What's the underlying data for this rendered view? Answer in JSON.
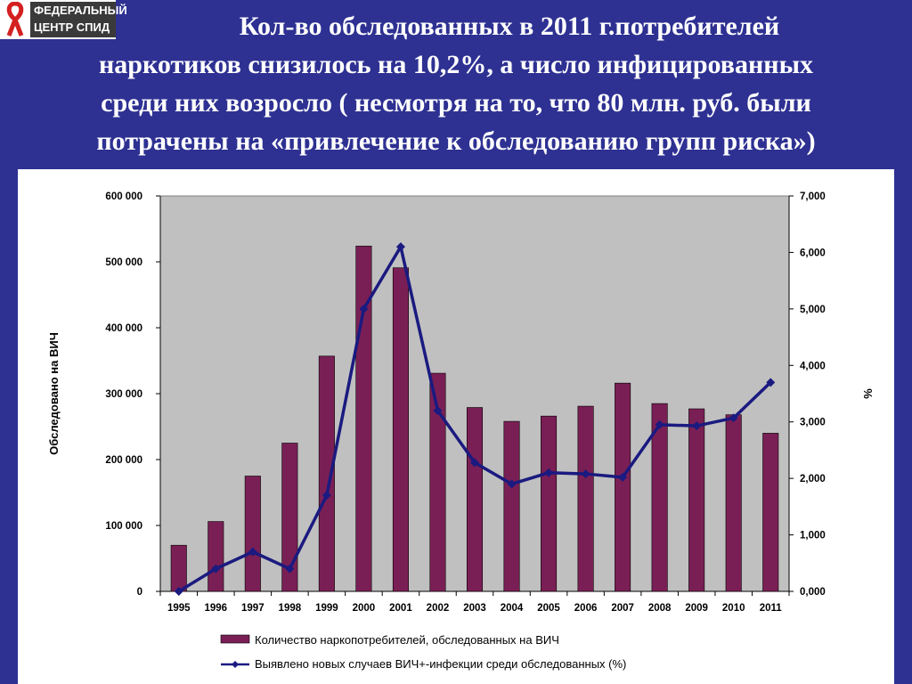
{
  "logo": {
    "line1": "ФЕДЕРАЛЬНЫЙ",
    "line2": "ЦЕНТР СПИД"
  },
  "title": {
    "line1": "Кол-во обследованных в 2011 г.потребителей",
    "line2": "наркотиков снизилось на 10,2%, а число инфицированных",
    "line3": "среди них возросло ( несмотря на то, что 80 млн. руб. были",
    "line4": "потрачены на «привлечение к обследованию групп риска»)"
  },
  "colors": {
    "background": "#2e3192",
    "bars": "#7a1f55",
    "line": "#1a1a80",
    "plot_area": "#c0c0c0"
  },
  "chart_data": {
    "type": "bar+line",
    "categories": [
      "1995",
      "1996",
      "1997",
      "1998",
      "1999",
      "2000",
      "2001",
      "2002",
      "2003",
      "2004",
      "2005",
      "2006",
      "2007",
      "2008",
      "2009",
      "2010",
      "2011"
    ],
    "ylabel": "Обследовано на ВИЧ",
    "y2label": "%",
    "ylim": [
      0,
      600000
    ],
    "y2lim": [
      0,
      7
    ],
    "y_ticks": [
      "0",
      "100 000",
      "200 000",
      "300 000",
      "400 000",
      "500 000",
      "600 000"
    ],
    "y2_ticks": [
      "0,000",
      "1,000",
      "2,000",
      "3,000",
      "4,000",
      "5,000",
      "6,000",
      "7,000"
    ],
    "grid": false,
    "legend_position": "bottom",
    "series": [
      {
        "name": "Количество наркопотребителей, обследованных на ВИЧ",
        "type": "bar",
        "axis": "left",
        "values": [
          70000,
          106000,
          175000,
          225000,
          357000,
          524000,
          491000,
          331000,
          279000,
          258000,
          266000,
          281000,
          316000,
          285000,
          277000,
          268000,
          240000
        ]
      },
      {
        "name": "Выявлено новых случаев ВИЧ+-инфекции среди обследованных (%)",
        "type": "line",
        "axis": "right",
        "values": [
          0.0,
          0.4,
          0.7,
          0.4,
          1.7,
          5.0,
          6.1,
          3.2,
          2.28,
          1.9,
          2.1,
          2.08,
          2.02,
          2.95,
          2.93,
          3.07,
          3.7
        ]
      }
    ]
  }
}
